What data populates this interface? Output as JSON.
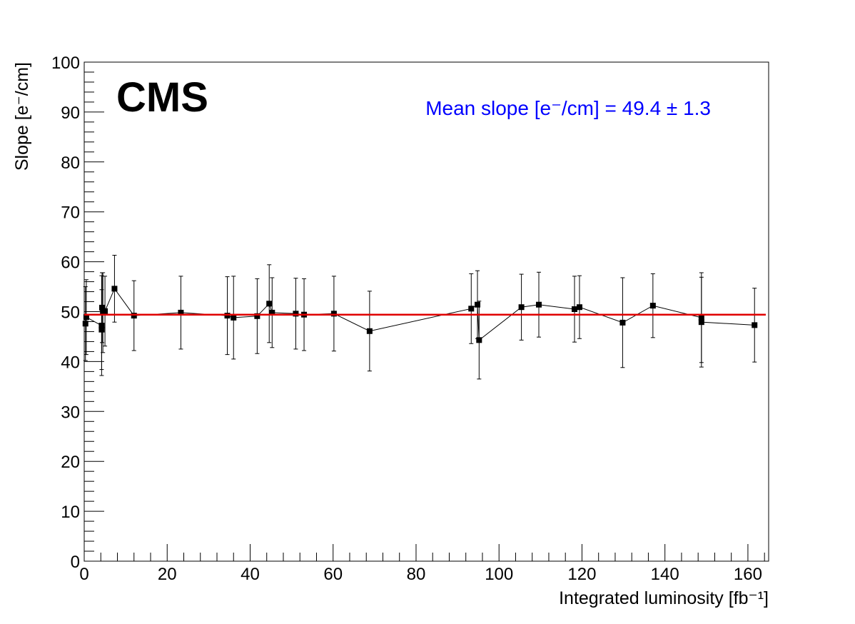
{
  "chart_data": {
    "type": "errorbar",
    "experiment_label": "CMS",
    "annotation": "Mean slope [e⁻/cm] = 49.4 ± 1.3",
    "annotation_color": "#0000ff",
    "x_label": "Integrated luminosity [fb⁻¹]",
    "y_label": "Slope [e⁻/cm]",
    "xlim": [
      0,
      165
    ],
    "ylim": [
      0,
      100
    ],
    "xticks": [
      0,
      20,
      40,
      60,
      80,
      100,
      120,
      140,
      160
    ],
    "yticks": [
      0,
      10,
      20,
      30,
      40,
      50,
      60,
      70,
      80,
      90,
      100
    ],
    "fit_value": 49.4,
    "fit_color": "#e00000",
    "series": [
      {
        "color": "#000000",
        "x": [
          0.3,
          0.5,
          4.2,
          4.2,
          4.3,
          4.5,
          5.0,
          7.3,
          12.0,
          23.3,
          34.5,
          36.0,
          41.7,
          44.6,
          45.3,
          51.0,
          53.0,
          60.2,
          68.8,
          93.3,
          94.8,
          95.2,
          105.4,
          109.6,
          118.2,
          119.4,
          129.8,
          137.1,
          148.8,
          148.8,
          161.6
        ],
        "values": [
          47.6,
          48.9,
          47.2,
          46.4,
          50.8,
          49.8,
          50.1,
          54.6,
          49.2,
          49.8,
          49.2,
          48.8,
          49.1,
          51.6,
          49.8,
          49.6,
          49.4,
          49.6,
          46.1,
          50.6,
          51.4,
          44.3,
          50.9,
          51.4,
          50.5,
          50.9,
          47.8,
          51.2,
          48.8,
          47.9,
          47.3
        ],
        "errors": [
          7.4,
          7.5,
          10.0,
          8.0,
          7.0,
          8.0,
          7.0,
          6.7,
          7.0,
          7.3,
          7.8,
          8.3,
          7.5,
          7.8,
          7.0,
          7.1,
          7.2,
          7.5,
          8.0,
          7.0,
          6.8,
          7.8,
          6.6,
          6.5,
          6.6,
          6.3,
          9.0,
          6.4,
          9.0,
          9.0,
          7.4
        ]
      }
    ]
  }
}
